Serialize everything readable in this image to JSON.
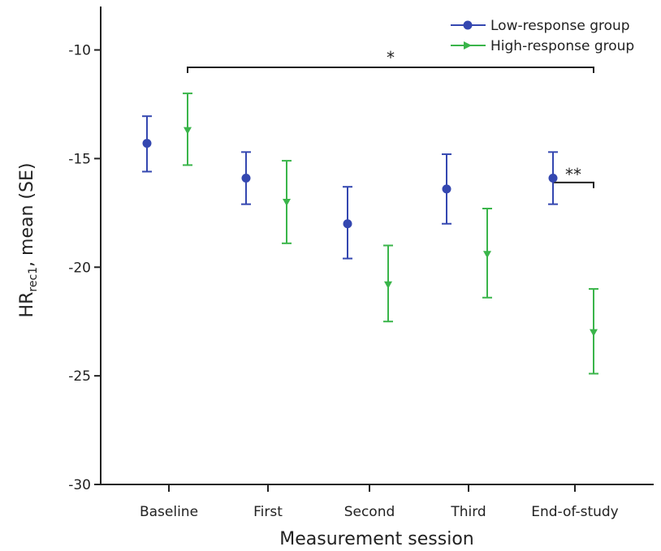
{
  "chart_data": {
    "type": "scatter",
    "xlabel": "Measurement session",
    "ylabel": {
      "main": "HR",
      "subscript": "rec1",
      "suffix": ", mean (SE)"
    },
    "categories": [
      "Baseline",
      "First",
      "Second",
      "Third",
      "End-of-study"
    ],
    "ylim": [
      -30,
      -8
    ],
    "yticks": [
      -10,
      -15,
      -20,
      -25,
      -30
    ],
    "grid": false,
    "legend_position": "top-right",
    "series": [
      {
        "name": "Low-response group",
        "marker": "circle",
        "color": "#3447b0",
        "values": [
          -14.3,
          -15.9,
          -18.0,
          -16.4,
          -15.9
        ],
        "error_low": [
          -15.6,
          -17.1,
          -19.6,
          -18.0,
          -17.1
        ],
        "error_high": [
          -13.05,
          -14.7,
          -16.3,
          -14.8,
          -14.7
        ]
      },
      {
        "name": "High-response group",
        "marker": "triangle-down",
        "color": "#3ab54a",
        "values": [
          -13.7,
          -17.0,
          -20.8,
          -19.4,
          -23.0
        ],
        "error_low": [
          -15.3,
          -18.9,
          -22.5,
          -21.4,
          -24.9
        ],
        "error_high": [
          -12.0,
          -15.1,
          -19.0,
          -17.3,
          -21.0
        ]
      }
    ],
    "annotations": [
      {
        "label": "*",
        "from_category": 0,
        "to_category": 4,
        "y": -10.8
      },
      {
        "label": "**",
        "from_category": 4,
        "to_category": 4,
        "y": -16.1
      }
    ]
  }
}
